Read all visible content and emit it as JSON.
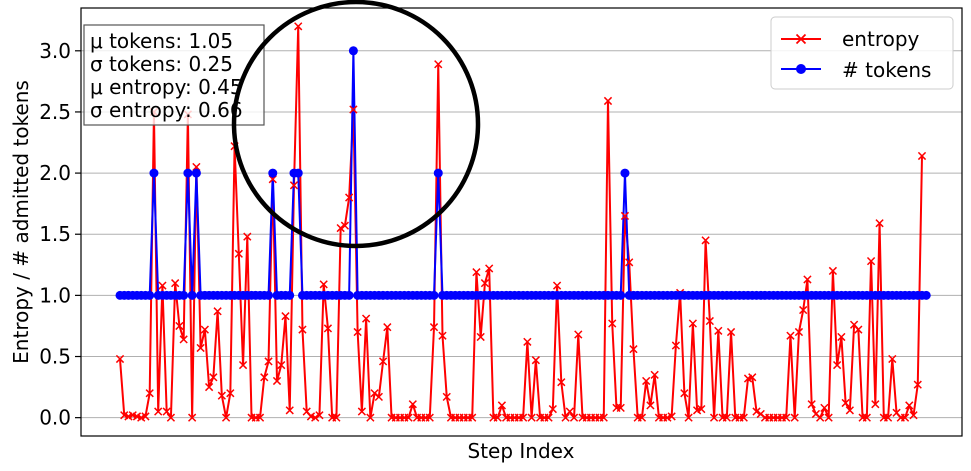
{
  "chart_data": {
    "type": "line",
    "title": "",
    "xlabel": "Step Index",
    "ylabel": "Entropy / # admitted tokens",
    "ylim": [
      -0.15,
      3.35
    ],
    "yticks": [
      0.0,
      0.5,
      1.0,
      1.5,
      2.0,
      2.5,
      3.0
    ],
    "ytick_labels": [
      "0.0",
      "0.5",
      "1.0",
      "1.5",
      "2.0",
      "2.5",
      "3.0"
    ],
    "grid": "horizontal",
    "legend_position": "top-right",
    "annotations": [
      "μ tokens: 1.05",
      "σ tokens: 0.25",
      "μ entropy: 0.45",
      "σ entropy: 0.66"
    ],
    "highlight": "circle",
    "series": [
      {
        "name": "entropy",
        "color": "#ff0000",
        "marker": "x",
        "values": [
          0.48,
          0.02,
          0.01,
          0.02,
          0.01,
          0.0,
          0.01,
          0.2,
          2.5,
          0.05,
          1.08,
          0.05,
          0.0,
          1.1,
          0.75,
          0.64,
          2.48,
          0.0,
          2.05,
          0.57,
          0.72,
          0.25,
          0.33,
          0.87,
          0.18,
          0.0,
          0.2,
          2.22,
          1.34,
          0.43,
          1.48,
          0.0,
          0.0,
          0.0,
          0.33,
          0.46,
          1.95,
          0.3,
          0.43,
          0.83,
          0.06,
          1.9,
          3.2,
          0.72,
          0.05,
          0.01,
          0.0,
          0.02,
          1.09,
          0.73,
          0.0,
          0.0,
          1.55,
          1.57,
          1.8,
          2.52,
          0.7,
          0.05,
          0.81,
          0.0,
          0.2,
          0.17,
          0.46,
          0.74,
          0.0,
          0.0,
          0.0,
          0.0,
          0.0,
          0.11,
          0.0,
          0.0,
          0.0,
          0.0,
          0.74,
          2.89,
          0.67,
          0.17,
          0.0,
          0.0,
          0.0,
          0.0,
          0.0,
          0.0,
          1.19,
          0.66,
          1.1,
          1.22,
          0.0,
          0.0,
          0.1,
          0.0,
          0.0,
          0.0,
          0.0,
          0.0,
          0.62,
          0.0,
          0.47,
          0.0,
          0.0,
          0.0,
          0.07,
          1.08,
          0.29,
          0.0,
          0.05,
          0.0,
          0.68,
          0.0,
          0.0,
          0.0,
          0.0,
          0.0,
          0.0,
          2.59,
          0.77,
          0.08,
          0.08,
          1.65,
          1.27,
          0.56,
          0.0,
          0.0,
          0.3,
          0.1,
          0.35,
          0.0,
          0.0,
          0.0,
          0.01,
          0.59,
          1.02,
          0.2,
          0.0,
          0.77,
          0.06,
          0.07,
          1.45,
          0.79,
          0.0,
          0.71,
          0.0,
          0.0,
          0.7,
          0.0,
          0.0,
          0.0,
          0.32,
          0.33,
          0.05,
          0.03,
          0.0,
          0.0,
          0.0,
          0.0,
          0.0,
          0.0,
          0.67,
          0.0,
          0.7,
          0.88,
          1.13,
          0.11,
          0.03,
          0.0,
          0.08,
          0.0,
          1.2,
          0.43,
          0.66,
          0.12,
          0.06,
          0.76,
          0.72,
          0.0,
          0.0,
          1.28,
          0.11,
          1.59,
          0.0,
          0.0,
          0.48,
          0.04,
          0.0,
          0.0,
          0.1,
          0.02,
          0.27,
          2.14
        ]
      },
      {
        "name": "# tokens",
        "color": "#0000ff",
        "marker": "o",
        "values": [
          1,
          1,
          1,
          1,
          1,
          1,
          1,
          1,
          2,
          1,
          1,
          1,
          1,
          1,
          1,
          1,
          2,
          1,
          2,
          1,
          1,
          1,
          1,
          1,
          1,
          1,
          1,
          1,
          1,
          1,
          1,
          1,
          1,
          1,
          1,
          1,
          2,
          1,
          1,
          1,
          1,
          2,
          2,
          1,
          1,
          1,
          1,
          1,
          1,
          1,
          1,
          1,
          1,
          1,
          1,
          3,
          1,
          1,
          1,
          1,
          1,
          1,
          1,
          1,
          1,
          1,
          1,
          1,
          1,
          1,
          1,
          1,
          1,
          1,
          1,
          2,
          1,
          1,
          1,
          1,
          1,
          1,
          1,
          1,
          1,
          1,
          1,
          1,
          1,
          1,
          1,
          1,
          1,
          1,
          1,
          1,
          1,
          1,
          1,
          1,
          1,
          1,
          1,
          1,
          1,
          1,
          1,
          1,
          1,
          1,
          1,
          1,
          1,
          1,
          1,
          1,
          1,
          1,
          1,
          2,
          1,
          1,
          1,
          1,
          1,
          1,
          1,
          1,
          1,
          1,
          1,
          1,
          1,
          1,
          1,
          1,
          1,
          1,
          1,
          1,
          1,
          1,
          1,
          1,
          1,
          1,
          1,
          1,
          1,
          1,
          1,
          1,
          1,
          1,
          1,
          1,
          1,
          1,
          1,
          1,
          1,
          1,
          1,
          1,
          1,
          1,
          1,
          1,
          1,
          1,
          1,
          1,
          1,
          1,
          1,
          1,
          1,
          1,
          1,
          1,
          1,
          1,
          1,
          1,
          1,
          1,
          1,
          1,
          1,
          1,
          1
        ]
      }
    ]
  }
}
